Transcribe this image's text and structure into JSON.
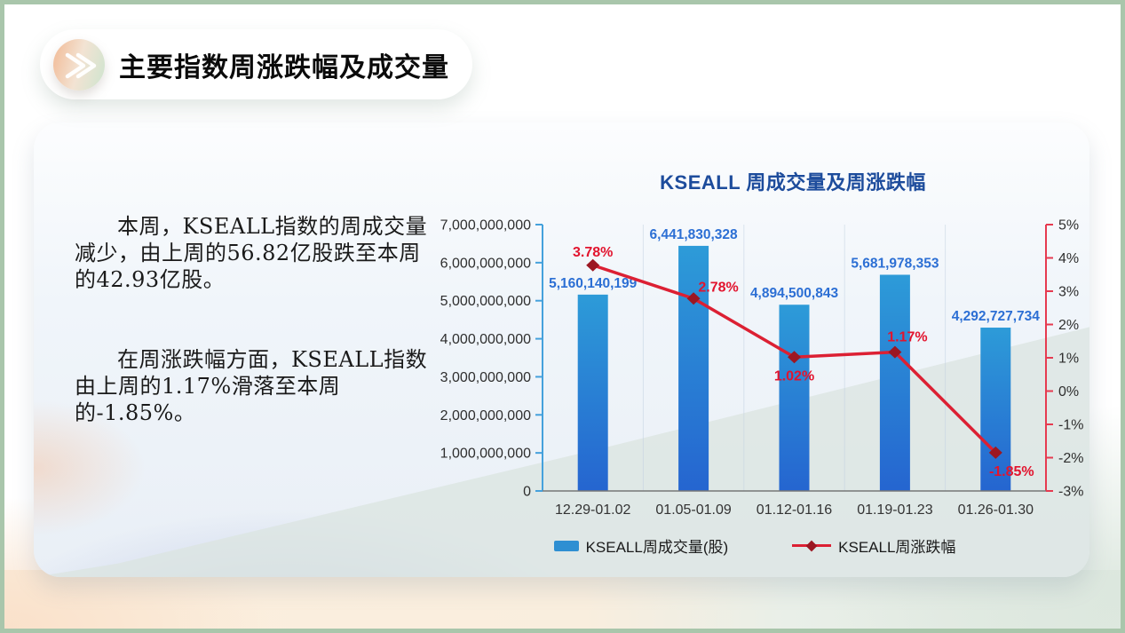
{
  "header": {
    "icon": "double-chevron-icon",
    "title": "主要指数周涨跌幅及成交量"
  },
  "commentary": {
    "paragraph1": "本周，KSEALL指数的周成交量减少，由上周的56.82亿股跌至本周的42.93亿股。",
    "paragraph2": "在周涨跌幅方面，KSEALL指数由上周的1.17%滑落至本周的-1.85%。"
  },
  "chart_data": {
    "type": "combo-bar-line",
    "title": "KSEALL 周成交量及周涨跌幅",
    "categories": [
      "12.29-01.02",
      "01.05-01.09",
      "01.12-01.16",
      "01.19-01.23",
      "01.26-01.30"
    ],
    "series": [
      {
        "name": "KSEALL周成交量(股)",
        "type": "bar",
        "axis": "left",
        "values": [
          5160140199,
          6441830328,
          4894500843,
          5681978353,
          4292727734
        ],
        "labels": [
          "5,160,140,199",
          "6,441,830,328",
          "4,894,500,843",
          "5,681,978,353",
          "4,292,727,734"
        ],
        "color_top": "#2d9bd8",
        "color_bottom": "#2565d0",
        "label_color": "#2c6fd4"
      },
      {
        "name": "KSEALL周涨跌幅",
        "type": "line",
        "axis": "right",
        "values": [
          3.78,
          2.78,
          1.02,
          1.17,
          -1.85
        ],
        "labels": [
          "3.78%",
          "2.78%",
          "1.02%",
          "1.17%",
          "-1.85%"
        ],
        "label_pos": [
          "above",
          "right-above",
          "below",
          "above-right",
          "below-right"
        ],
        "line_color": "#dc2033",
        "marker_color": "#9c1722",
        "label_color": "#e2142e"
      }
    ],
    "left_axis": {
      "min": 0,
      "max": 7000000000,
      "step": 1000000000,
      "color": "#45a1dc",
      "tick_labels": [
        "7,000,000,000",
        "6,000,000,000",
        "5,000,000,000",
        "4,000,000,000",
        "3,000,000,000",
        "2,000,000,000",
        "1,000,000,000",
        "0"
      ]
    },
    "right_axis": {
      "min": -3,
      "max": 5,
      "step": 1,
      "color": "#e63a50",
      "tick_labels": [
        "5%",
        "4%",
        "3%",
        "2%",
        "1%",
        "0%",
        "-1%",
        "-2%",
        "-3%"
      ]
    },
    "grid": "vertical-category-separators",
    "legend_position": "bottom"
  },
  "colors": {
    "slide_border": "#a9c6ab",
    "chart_title": "#1d4c9c",
    "bottom_axis": "#777777",
    "gridline": "#c3d2e2",
    "card_lavender": "#bac3e5",
    "card_peach": "#f8e0cc",
    "outer_peach": "#fceedd",
    "outer_green": "#e0e9e1"
  }
}
